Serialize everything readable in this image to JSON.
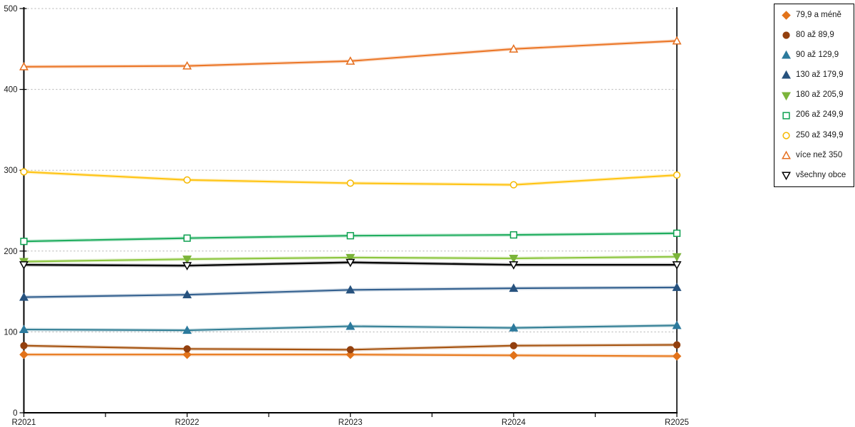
{
  "chart_data": {
    "type": "line",
    "title": "",
    "xlabel": "",
    "ylabel": "",
    "x_categories": [
      "R2021",
      "R2022",
      "R2023",
      "R2024",
      "R2025"
    ],
    "ylim": [
      0,
      500
    ],
    "yticks": [
      0,
      100,
      200,
      300,
      400,
      500
    ],
    "grid": "horizontal-dotted",
    "gridline_color": "#b0b0b0",
    "axis_color": "#000000",
    "tick_label_color": "#1a1a1a",
    "legend_position": "right",
    "series": [
      {
        "name": "79,9 a méně",
        "color": "#E87A1E",
        "marker_color": "#E2731A",
        "marker": "diamond",
        "filled": true,
        "values": [
          72,
          72,
          72,
          71,
          70
        ]
      },
      {
        "name": "80 až 89,9",
        "color": "#A5520F",
        "marker_color": "#93400E",
        "marker": "circle",
        "filled": true,
        "values": [
          83,
          79,
          78,
          83,
          84
        ]
      },
      {
        "name": "90 až 129,9",
        "color": "#337F95",
        "marker_color": "#2C7A9D",
        "marker": "triangle-up",
        "filled": true,
        "values": [
          103,
          102,
          107,
          105,
          108
        ]
      },
      {
        "name": "130 až 179,9",
        "color": "#33608F",
        "marker_color": "#27527E",
        "marker": "triangle-up",
        "filled": true,
        "values": [
          143,
          146,
          152,
          154,
          155
        ]
      },
      {
        "name": "180 až 205,9",
        "color": "#8CC63F",
        "marker_color": "#7BB43A",
        "marker": "triangle-down",
        "filled": true,
        "values": [
          187,
          190,
          192,
          191,
          193
        ]
      },
      {
        "name": "206 až 249,9",
        "color": "#1FAD5E",
        "marker_color": "#0DA050",
        "marker": "square",
        "filled": false,
        "values": [
          212,
          216,
          219,
          220,
          222
        ]
      },
      {
        "name": "250 až 349,9",
        "color": "#FFC414",
        "marker_color": "#F5B800",
        "marker": "circle",
        "filled": false,
        "values": [
          298,
          288,
          284,
          282,
          294
        ]
      },
      {
        "name": "více než 350",
        "color": "#EB7728",
        "marker_color": "#E56F1F",
        "marker": "triangle-up",
        "filled": false,
        "values": [
          428,
          429,
          435,
          450,
          460
        ]
      },
      {
        "name": "všechny obce",
        "color": "#000000",
        "marker_color": "#000000",
        "marker": "triangle-down",
        "filled": false,
        "values": [
          183,
          182,
          186,
          183,
          183
        ]
      }
    ]
  }
}
